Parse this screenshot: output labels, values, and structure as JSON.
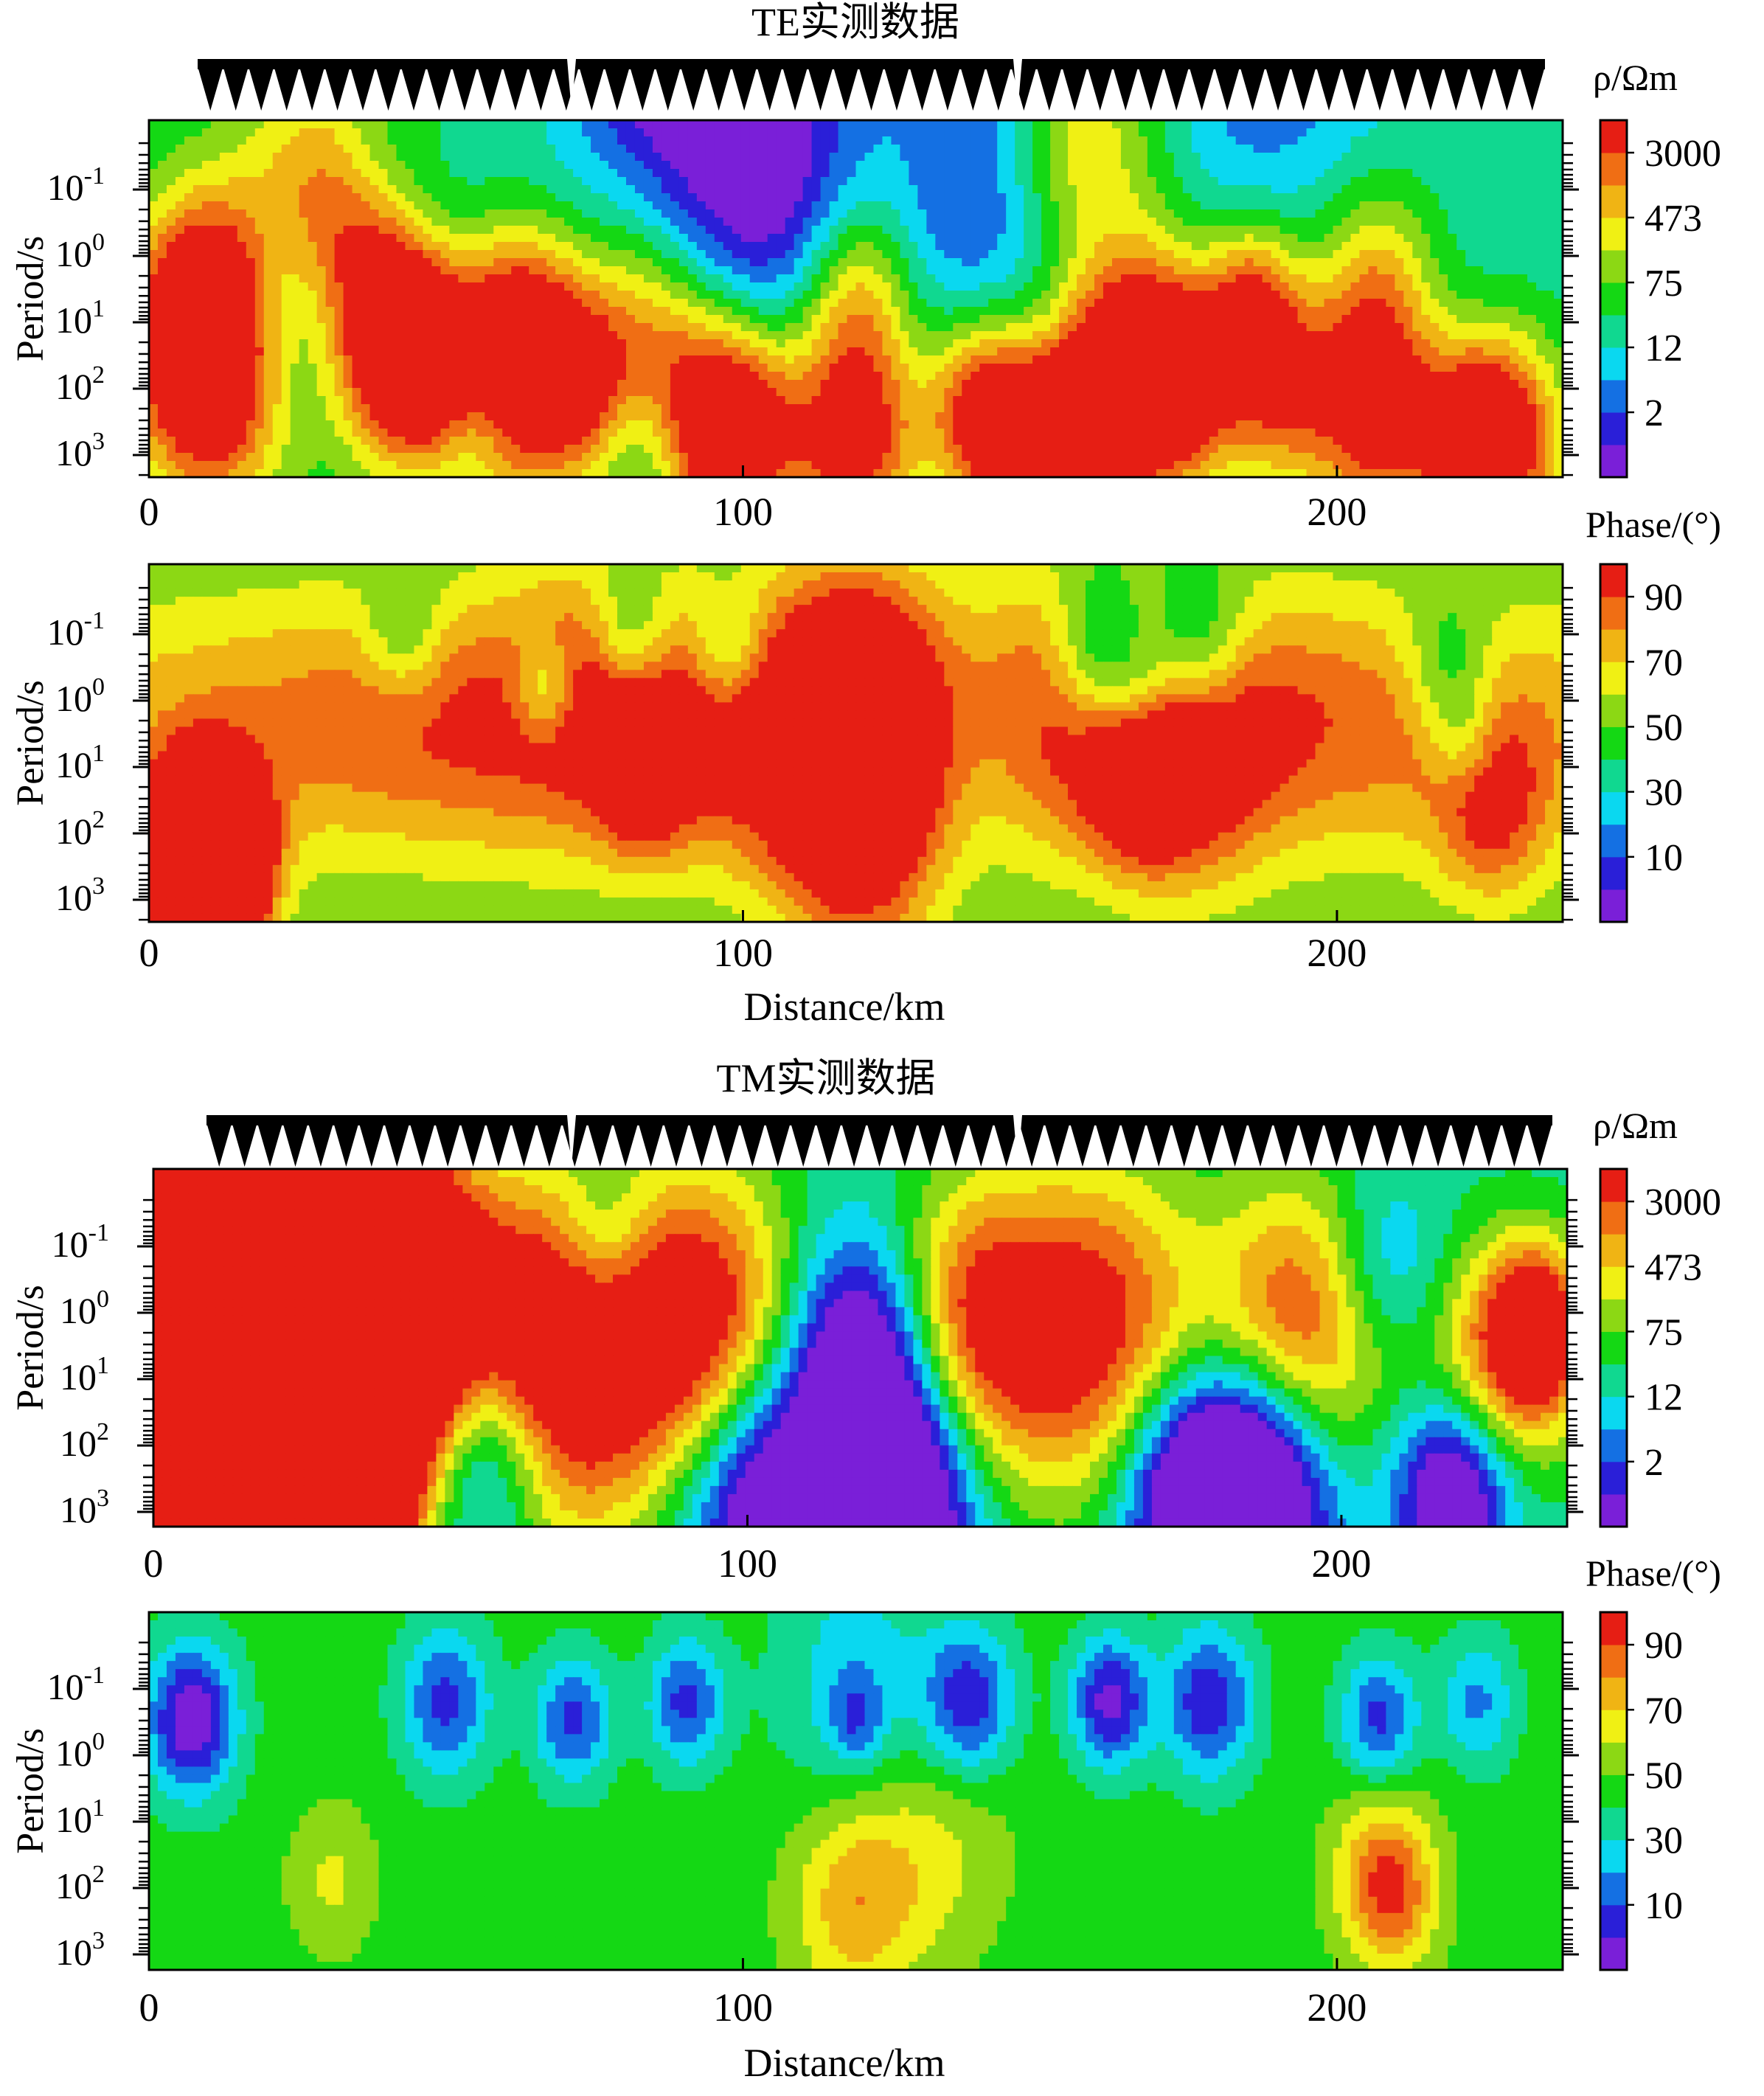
{
  "chart_data": [
    {
      "type": "heatmap",
      "group": "TE实测数据",
      "quantity": "resistivity",
      "title": "TE实测数据",
      "ylabel": "Period/s",
      "xlabel": "",
      "colorbar_label": "ρ/Ωm",
      "x_ticks": [
        "0",
        "100",
        "200"
      ],
      "y_ticks": [
        {
          "base": "10",
          "exp": "-1"
        },
        {
          "base": "10",
          "exp": "0"
        },
        {
          "base": "10",
          "exp": "1"
        },
        {
          "base": "10",
          "exp": "2"
        },
        {
          "base": "10",
          "exp": "3"
        }
      ],
      "colorbar_ticks": [
        "3000",
        "473",
        "75",
        "12",
        "2"
      ],
      "xlim": [
        0,
        238
      ],
      "ylim_log10_period": [
        -2,
        3.3
      ],
      "stations_shown": true,
      "scalar_range": [
        0,
        100
      ],
      "blobs": [
        [
          0.3,
          -0.4,
          0.5,
          30
        ],
        [
          0.65,
          0.05,
          0.65,
          45
        ],
        [
          0.1,
          0.55,
          0.55,
          -50
        ],
        [
          0.43,
          0.35,
          0.8,
          -30
        ],
        [
          0.6,
          0.3,
          0.75,
          -25
        ],
        [
          0.78,
          0.6,
          0.7,
          -20
        ],
        [
          0.9,
          0.65,
          0.55,
          -15
        ],
        [
          0.14,
          0.35,
          0.8,
          70
        ],
        [
          0.04,
          0.6,
          0.65,
          78
        ],
        [
          0.19,
          0.65,
          0.5,
          78
        ],
        [
          0.26,
          0.55,
          0.45,
          48
        ],
        [
          0.29,
          0.75,
          0.45,
          48
        ],
        [
          0.35,
          0.7,
          0.65,
          52
        ],
        [
          0.42,
          0.85,
          0.55,
          55
        ],
        [
          0.5,
          0.9,
          0.5,
          60
        ],
        [
          0.59,
          0.8,
          0.45,
          58
        ],
        [
          0.66,
          0.85,
          0.5,
          52
        ],
        [
          0.73,
          0.75,
          0.5,
          52
        ],
        [
          0.8,
          0.75,
          0.5,
          56
        ],
        [
          0.87,
          0.85,
          0.5,
          55
        ],
        [
          0.96,
          0.9,
          0.5,
          55
        ],
        [
          0.35,
          -0.25,
          0.75,
          -35
        ],
        [
          0.43,
          -0.1,
          0.75,
          -25
        ],
        [
          0.61,
          -0.15,
          0.7,
          -20
        ],
        [
          0.79,
          -0.3,
          0.8,
          -22
        ],
        [
          0.2,
          0.3,
          0.5,
          -25
        ],
        [
          0.16,
          0.1,
          0.4,
          -20
        ],
        [
          0.23,
          0.9,
          0.3,
          -20
        ],
        [
          0.35,
          0.9,
          0.4,
          -28
        ],
        [
          0.43,
          1.0,
          0.5,
          -10
        ],
        [
          0.45,
          -0.7,
          0.7,
          -25
        ],
        [
          0.88,
          -0.6,
          0.7,
          -15
        ],
        [
          0.04,
          0.5,
          0.35,
          10
        ],
        [
          0.05,
          0.8,
          0.6,
          22
        ],
        [
          0.24,
          0.95,
          0.4,
          30
        ],
        [
          0.41,
          0.9,
          0.5,
          30
        ],
        [
          0.5,
          0.5,
          0.45,
          40
        ],
        [
          0.62,
          0.95,
          0.45,
          35
        ],
        [
          0.7,
          0.65,
          0.55,
          55
        ],
        [
          0.78,
          0.5,
          0.4,
          50
        ],
        [
          0.87,
          0.5,
          0.5,
          45
        ],
        [
          0.93,
          0.85,
          0.45,
          40
        ]
      ]
    },
    {
      "type": "heatmap",
      "group": "TE实测数据",
      "quantity": "phase",
      "title": "",
      "ylabel": "Period/s",
      "xlabel": "Distance/km",
      "colorbar_label": "Phase/(°)",
      "x_ticks": [
        "0",
        "100",
        "200"
      ],
      "y_ticks": [
        {
          "base": "10",
          "exp": "-1"
        },
        {
          "base": "10",
          "exp": "0"
        },
        {
          "base": "10",
          "exp": "1"
        },
        {
          "base": "10",
          "exp": "2"
        },
        {
          "base": "10",
          "exp": "3"
        }
      ],
      "colorbar_ticks": [
        "90",
        "70",
        "50",
        "30",
        "10"
      ],
      "xlim": [
        0,
        238
      ],
      "ylim_log10_period": [
        -2,
        3.3
      ],
      "stations_shown": false,
      "scalar_range": [
        0,
        100
      ],
      "blobs": [
        [
          0.3,
          0.25,
          0.5,
          10
        ],
        [
          0.65,
          0.2,
          0.45,
          12
        ],
        [
          0.35,
          0.6,
          0.35,
          30
        ],
        [
          0.7,
          0.6,
          0.35,
          30
        ],
        [
          0.5,
          0.45,
          0.6,
          0.4,
          55
        ],
        [
          0.18,
          0.2,
          0.3,
          -20
        ],
        [
          0.28,
          0.35,
          0.25,
          -30
        ],
        [
          0.34,
          0.2,
          0.3,
          -25
        ],
        [
          0.41,
          0.25,
          0.3,
          -25
        ],
        [
          0.58,
          0.5,
          0.6,
          -25
        ],
        [
          0.92,
          0.3,
          0.35,
          -25
        ],
        [
          0.67,
          0.25,
          0.4,
          -45
        ],
        [
          0.74,
          0.25,
          0.4,
          -40
        ],
        [
          0.04,
          0.85,
          0.4,
          200
        ],
        [
          0.5,
          0.75,
          0.65,
          45
        ],
        [
          0.73,
          0.55,
          0.6,
          30
        ],
        [
          0.95,
          0.7,
          0.45,
          30
        ],
        [
          0.5,
          0.3,
          0.6,
          25
        ],
        [
          0.7,
          0.4,
          0.3,
          -25
        ],
        [
          0.93,
          0.5,
          0.25,
          -18
        ]
      ]
    },
    {
      "type": "heatmap",
      "group": "TM实测数据",
      "quantity": "resistivity",
      "title": "TM实测数据",
      "ylabel": "Period/s",
      "xlabel": "",
      "colorbar_label": "ρ/Ωm",
      "x_ticks": [
        "0",
        "100",
        "200"
      ],
      "y_ticks": [
        {
          "base": "10",
          "exp": "-1"
        },
        {
          "base": "10",
          "exp": "0"
        },
        {
          "base": "10",
          "exp": "1"
        },
        {
          "base": "10",
          "exp": "2"
        },
        {
          "base": "10",
          "exp": "3"
        }
      ],
      "colorbar_ticks": [
        "3000",
        "473",
        "75",
        "12",
        "2"
      ],
      "xlim": [
        0,
        238
      ],
      "ylim_log10_period": [
        -2,
        3.3
      ],
      "stations_shown": true,
      "scalar_range": [
        0,
        100
      ],
      "blobs": [
        [
          0.5,
          0.5,
          0.55,
          -50
        ],
        [
          0.88,
          0.3,
          0.45,
          -15
        ],
        [
          0.065,
          0.35,
          1.0,
          300
        ],
        [
          0.065,
          0.65,
          1.0,
          250
        ],
        [
          0.02,
          0.3,
          0.7,
          -80
        ],
        [
          0.11,
          0.75,
          0.55,
          -35
        ],
        [
          0.16,
          0.45,
          0.8,
          68
        ],
        [
          0.28,
          0.55,
          0.85,
          75
        ],
        [
          0.39,
          0.45,
          0.75,
          65
        ],
        [
          0.58,
          0.45,
          0.7,
          55
        ],
        [
          0.67,
          0.45,
          0.8,
          55
        ],
        [
          0.81,
          0.45,
          0.7,
          55
        ],
        [
          0.23,
          0.8,
          0.55,
          -60
        ],
        [
          0.43,
          0.9,
          0.65,
          -60
        ],
        [
          0.53,
          0.9,
          0.6,
          -70
        ],
        [
          0.73,
          0.9,
          0.55,
          -50
        ],
        [
          0.78,
          0.9,
          0.6,
          -75
        ],
        [
          0.92,
          0.9,
          0.45,
          -60
        ],
        [
          0.12,
          0.55,
          0.35,
          -20
        ],
        [
          0.95,
          0.55,
          0.6,
          40
        ],
        [
          0.32,
          0.2,
          0.35,
          -20
        ],
        [
          0.86,
          0.25,
          0.4,
          -10
        ],
        [
          0.98,
          0.45,
          0.4,
          60
        ]
      ]
    },
    {
      "type": "heatmap",
      "group": "TM实测数据",
      "quantity": "phase",
      "title": "",
      "ylabel": "Period/s",
      "xlabel": "Distance/km",
      "colorbar_label": "Phase/(°)",
      "x_ticks": [
        "0",
        "100",
        "200"
      ],
      "y_ticks": [
        {
          "base": "10",
          "exp": "-1"
        },
        {
          "base": "10",
          "exp": "0"
        },
        {
          "base": "10",
          "exp": "1"
        },
        {
          "base": "10",
          "exp": "2"
        },
        {
          "base": "10",
          "exp": "3"
        }
      ],
      "colorbar_ticks": [
        "90",
        "70",
        "50",
        "30",
        "10"
      ],
      "xlim": [
        0,
        238
      ],
      "ylim_log10_period": [
        -2,
        3.3
      ],
      "stations_shown": false,
      "scalar_range": [
        0,
        100
      ],
      "blobs": [
        [
          0.5,
          0.8,
          0.5,
          30
        ],
        [
          0.56,
          0.65,
          0.55,
          15
        ],
        [
          0.87,
          0.7,
          0.4,
          20
        ],
        [
          0.5,
          0.2,
          0.6,
          -20
        ],
        [
          0.03,
          0.3,
          0.35,
          -50
        ],
        [
          0.21,
          0.25,
          0.35,
          -35
        ],
        [
          0.3,
          0.3,
          0.3,
          -35
        ],
        [
          0.38,
          0.25,
          0.3,
          -35
        ],
        [
          0.5,
          0.3,
          0.2,
          -20
        ],
        [
          0.58,
          0.25,
          0.35,
          -40
        ],
        [
          0.68,
          0.25,
          0.3,
          -45
        ],
        [
          0.75,
          0.25,
          0.35,
          -40
        ],
        [
          0.87,
          0.3,
          0.3,
          -35
        ],
        [
          0.94,
          0.25,
          0.3,
          -25
        ],
        [
          0.13,
          0.75,
          0.35,
          15
        ],
        [
          0.88,
          0.8,
          0.35,
          30
        ]
      ]
    }
  ],
  "colors": {
    "colorbar": [
      "#7a1fd8",
      "#2a1fd8",
      "#1470e3",
      "#0ad8f0",
      "#10d890",
      "#14d814",
      "#8cd814",
      "#f0f014",
      "#f0b414",
      "#f06e14",
      "#e61e14"
    ]
  },
  "labels": {
    "title_te": "TE实测数据",
    "title_tm": "TM实测数据",
    "rho": "ρ/Ωm",
    "phase": "Phase/(°)",
    "period": "Period/s",
    "distance": "Distance/km",
    "x0": "0",
    "x100": "100",
    "x200": "200"
  }
}
